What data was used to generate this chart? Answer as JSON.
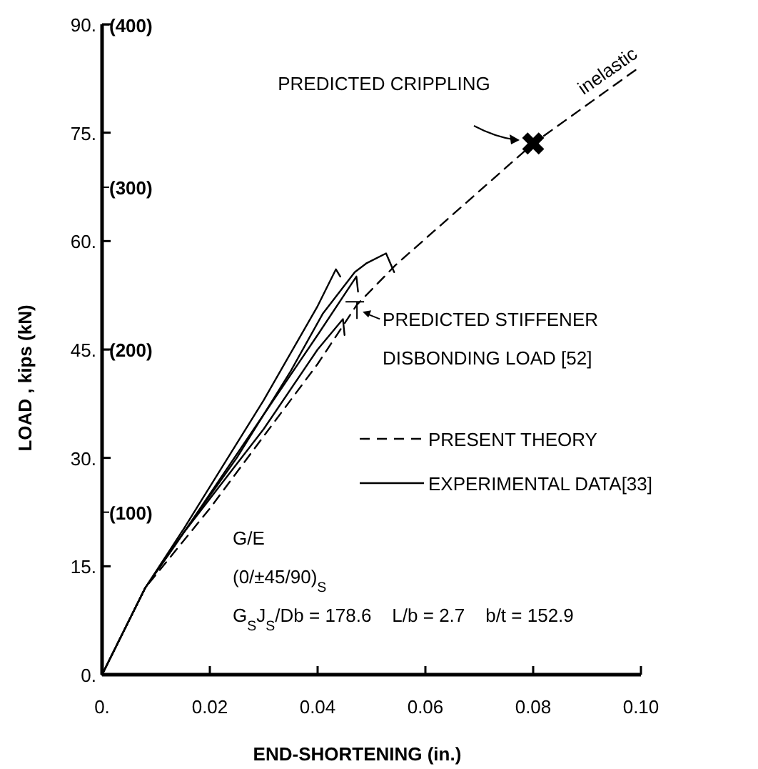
{
  "chart_data": {
    "type": "line",
    "xlabel": "END-SHORTENING  (in.)",
    "ylabel": "LOAD , kips (kN)",
    "xlim": [
      0,
      0.1
    ],
    "xticks": [
      {
        "value": 0,
        "label": "0."
      },
      0.02,
      0.04,
      0.06,
      0.08,
      {
        "value": 0.1,
        "label": "0.10"
      }
    ],
    "ylim": [
      0,
      90
    ],
    "yticks": [
      {
        "value": 0,
        "label": "0."
      },
      {
        "value": 15,
        "label": "15."
      },
      {
        "value": 30,
        "label": "30."
      },
      {
        "value": 45,
        "label": "45."
      },
      {
        "value": 60,
        "label": "60."
      },
      {
        "value": 75,
        "label": "75."
      },
      {
        "value": 90,
        "label": "90."
      }
    ],
    "y2lim": [
      0,
      400.3
    ],
    "y2ticks": [
      {
        "value": 100,
        "label": "(100)"
      },
      {
        "value": 200,
        "label": "(200)"
      },
      {
        "value": 300,
        "label": "(300)"
      },
      {
        "value": 400,
        "label": "(400)"
      }
    ],
    "legend": "right",
    "series": [
      {
        "name": "PRESENT THEORY",
        "color": "#000000",
        "line_style": "dashed",
        "marker": "none",
        "x": [
          0,
          0.008,
          0.02,
          0.03,
          0.04,
          0.0473,
          0.0545,
          0.08,
          0.0996
        ],
        "values": [
          0,
          12,
          23,
          33,
          43,
          51.2,
          56.7,
          73.5,
          84
        ]
      },
      {
        "name": "EXPERIMENTAL DATA[33]",
        "color": "#000000",
        "line_style": "solid",
        "marker": "none",
        "x": [
          0,
          0.008,
          0.015,
          0.02,
          0.03,
          0.04,
          0.0434,
          0.0442
        ],
        "values": [
          0,
          12,
          20,
          26,
          38,
          51,
          56.1,
          55.1
        ]
      },
      {
        "color": "#000000",
        "line_style": "solid",
        "marker": "none",
        "x": [
          0,
          0.008,
          0.015,
          0.025,
          0.035,
          0.041,
          0.0469,
          0.049,
          0.0527,
          0.0542
        ],
        "values": [
          0,
          12,
          19.5,
          30,
          42,
          50,
          55.7,
          56.9,
          58.3,
          55.7
        ]
      },
      {
        "color": "#000000",
        "line_style": "solid",
        "marker": "none",
        "x": [
          0,
          0.008,
          0.015,
          0.03,
          0.04,
          0.0472,
          0.0475
        ],
        "values": [
          0,
          12,
          19.5,
          36,
          47,
          55.1,
          53
        ]
      },
      {
        "color": "#000000",
        "line_style": "solid",
        "marker": "none",
        "x": [
          0,
          0.008,
          0.015,
          0.03,
          0.04,
          0.0447,
          0.045
        ],
        "values": [
          0,
          12,
          19.5,
          34,
          45,
          49.2,
          47
        ]
      },
      {
        "type": "scatter",
        "color": "#000000",
        "marker": "cross",
        "x": [
          0.08
        ],
        "values": [
          73.5
        ]
      }
    ],
    "annotations": [
      "PREDICTED CRIPPLING",
      {
        "text": "PREDICTED STIFFENER\nDISBONDING LOAD [52]",
        "x": 0.0473,
        "y": 51.2
      },
      {
        "text": "inelastic",
        "x": 0.092,
        "y": 79
      },
      "G/E",
      "(0/±45/90)$_{S}$",
      "G$_{S}$J$_{S}$/Db = 178.6    L/b = 2.7    b/t = 152.9"
    ]
  }
}
